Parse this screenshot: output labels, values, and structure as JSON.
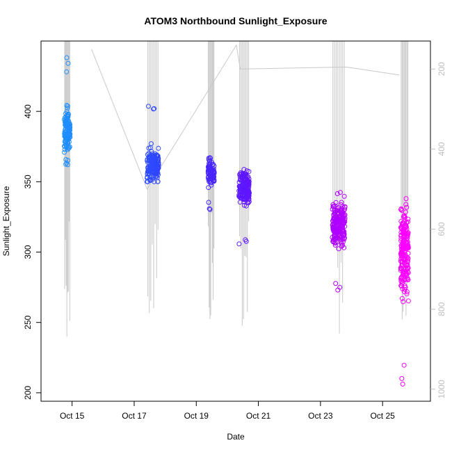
{
  "chart_data": {
    "type": "scatter",
    "title": "ATOM3 Northbound Sunlight_Exposure",
    "xlabel": "Date",
    "ylabel": "Sunlight_Exposure",
    "xlim": [
      "2023-10-14T00:00",
      "2023-10-26T13:00"
    ],
    "ylim": [
      194,
      450
    ],
    "x_ticks": [
      {
        "label": "Oct 15",
        "at": "2023-10-15T00:00"
      },
      {
        "label": "Oct 17",
        "at": "2023-10-17T00:00"
      },
      {
        "label": "Oct 19",
        "at": "2023-10-19T00:00"
      },
      {
        "label": "Oct 21",
        "at": "2023-10-21T00:00"
      },
      {
        "label": "Oct 23",
        "at": "2023-10-23T00:00"
      },
      {
        "label": "Oct 25",
        "at": "2023-10-25T00:00"
      }
    ],
    "y_ticks": [
      200,
      250,
      300,
      350,
      400
    ],
    "right_axis": {
      "ylim": [
        1030,
        130
      ],
      "ticks": [
        200,
        400,
        600,
        800,
        1000
      ],
      "color": "#bdbdbd"
    },
    "grid": false,
    "legend": "none",
    "color_gradient": [
      "#1e90ff",
      "#3333ff",
      "#7f00ff",
      "#ff00ff"
    ],
    "clusters": [
      {
        "x_start": "2023-10-14T18:00",
        "x_end": "2023-10-14T22:30",
        "y_min": 359,
        "y_max": 440,
        "y_center": 385,
        "n": 130
      },
      {
        "x_start": "2023-10-17T10:00",
        "x_end": "2023-10-17T19:00",
        "y_min": 350,
        "y_max": 406,
        "y_center": 362,
        "n": 160
      },
      {
        "x_start": "2023-10-19T09:00",
        "x_end": "2023-10-19T14:00",
        "y_min": 330,
        "y_max": 371,
        "y_center": 356,
        "n": 90
      },
      {
        "x_start": "2023-10-20T09:00",
        "x_end": "2023-10-20T17:00",
        "y_min": 303,
        "y_max": 359,
        "y_center": 345,
        "n": 170
      },
      {
        "x_start": "2023-10-23T09:00",
        "x_end": "2023-10-23T19:00",
        "y_min": 273,
        "y_max": 348,
        "y_center": 320,
        "n": 210
      },
      {
        "x_start": "2023-10-25T14:00",
        "x_end": "2023-10-25T20:00",
        "y_min": 199,
        "y_max": 338,
        "y_center": 300,
        "n": 200
      }
    ],
    "line_series": {
      "color": "#c8c8c8",
      "segments": [
        {
          "x": "2023-10-14T21:00",
          "y_top": 145
        },
        {
          "x": "2023-10-17T09:00",
          "y_top": 150
        },
        {
          "x": "2023-10-19T09:00",
          "y_top": 150
        },
        {
          "x": "2023-10-20T09:00",
          "y_top": 150
        },
        {
          "x": "2023-10-23T09:00",
          "y_top": 150
        },
        {
          "x": "2023-10-25T14:00",
          "y_top": 150
        }
      ],
      "path": [
        [
          "2023-10-15T15:00",
          150
        ],
        [
          "2023-10-17T10:00",
          500
        ],
        [
          "2023-10-20T07:00",
          140
        ],
        [
          "2023-10-20T10:00",
          200
        ],
        [
          "2023-10-23T20:00",
          195
        ],
        [
          "2023-10-25T13:00",
          215
        ]
      ]
    }
  }
}
